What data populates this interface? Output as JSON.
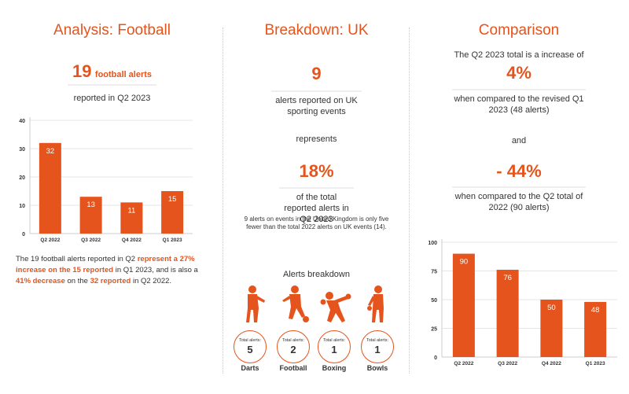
{
  "colors": {
    "accent": "#e4541c",
    "text": "#333333",
    "grid": "#e6e6e6"
  },
  "football": {
    "title": "Analysis: Football",
    "count": "19",
    "count_label": "football alerts",
    "subtitle": "reported in Q2 2023",
    "para": {
      "p1": "The 19 football alerts reported in Q2 ",
      "b1": "represent a 27% increase on the 15 reported",
      "p2": " in Q1 2023, and is also a ",
      "b2": "41% decrease",
      "p3": " on the ",
      "b3": "32 reported",
      "p4": " in Q2 2022."
    }
  },
  "uk": {
    "title": "Breakdown: UK",
    "count": "9",
    "count_label": "alerts reported on UK sporting events",
    "represents": "represents",
    "percent": "18%",
    "percent_label": "of the total reported alerts in Q2 2023",
    "note": "9 alerts on events in the United Kingdom is only five fewer than the total 2022 alerts on UK events (14).",
    "breakdown_title": "Alerts breakdown",
    "sports": [
      {
        "name": "Darts",
        "label": "Total alerts:",
        "value": "5",
        "icon": "darts-player-icon"
      },
      {
        "name": "Football",
        "label": "Total alerts:",
        "value": "2",
        "icon": "football-player-icon"
      },
      {
        "name": "Boxing",
        "label": "Total alerts:",
        "value": "1",
        "icon": "boxer-icon"
      },
      {
        "name": "Bowls",
        "label": "Total alerts:",
        "value": "1",
        "icon": "bowls-player-icon"
      }
    ]
  },
  "comparison": {
    "title": "Comparison",
    "line1": "The Q2 2023 total is a increase of",
    "pct1": "4%",
    "line2": "when compared to the revised Q1 2023 (48 alerts)",
    "and": "and",
    "pct2": "- 44%",
    "line3": "when compared to the Q2 total of 2022 (90 alerts)"
  },
  "chart_data": [
    {
      "type": "bar",
      "categories": [
        "Q2 2022",
        "Q3 2022",
        "Q4 2022",
        "Q1 2023"
      ],
      "values": [
        32,
        13,
        11,
        15
      ],
      "yticks": [
        0,
        10,
        20,
        30,
        40
      ],
      "ylim": [
        0,
        40
      ],
      "grid": true
    },
    {
      "type": "bar",
      "categories": [
        "Q2 2022",
        "Q3 2022",
        "Q4 2022",
        "Q1 2023"
      ],
      "values": [
        90,
        76,
        50,
        48
      ],
      "yticks": [
        0,
        25,
        50,
        75,
        100
      ],
      "ylim": [
        0,
        100
      ],
      "grid": true
    }
  ]
}
